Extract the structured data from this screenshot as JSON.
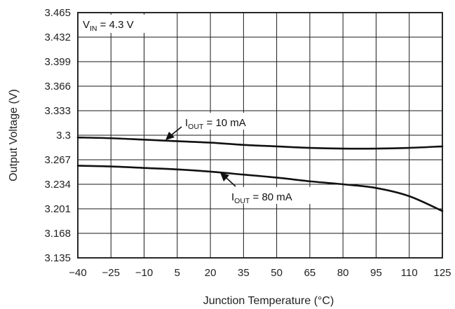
{
  "chart_data": {
    "type": "line",
    "xlabel": "Junction Temperature (°C)",
    "ylabel": "Output Voltage (V)",
    "xlim": [
      -40,
      125
    ],
    "ylim": [
      3.135,
      3.465
    ],
    "x_ticks": [
      -40,
      -25,
      -10,
      5,
      20,
      35,
      50,
      65,
      80,
      95,
      110,
      125
    ],
    "x_tick_labels": [
      "−40",
      "−25",
      "−10",
      "5",
      "20",
      "35",
      "50",
      "65",
      "80",
      "95",
      "110",
      "125"
    ],
    "y_ticks": [
      3.135,
      3.168,
      3.201,
      3.234,
      3.267,
      3.3,
      3.333,
      3.366,
      3.399,
      3.432,
      3.465
    ],
    "y_tick_labels": [
      "3.135",
      "3.168",
      "3.201",
      "3.234",
      "3.267",
      "3.3",
      "3.333",
      "3.366",
      "3.399",
      "3.432",
      "3.465"
    ],
    "grid": true,
    "annotations": [
      {
        "main": "V",
        "sub": "IN",
        "rest": " = 4.3 V"
      },
      {
        "main": "I",
        "sub": "OUT",
        "rest": " = 10 mA"
      },
      {
        "main": "I",
        "sub": "OUT",
        "rest": " = 80 mA"
      }
    ],
    "series": [
      {
        "x": [
          -40,
          -25,
          -10,
          5,
          20,
          35,
          50,
          65,
          80,
          95,
          110,
          125
        ],
        "y": [
          3.297,
          3.296,
          3.294,
          3.292,
          3.29,
          3.287,
          3.285,
          3.283,
          3.282,
          3.282,
          3.283,
          3.285
        ]
      },
      {
        "x": [
          -40,
          -25,
          -10,
          5,
          20,
          35,
          50,
          65,
          80,
          95,
          110,
          125
        ],
        "y": [
          3.259,
          3.258,
          3.256,
          3.254,
          3.251,
          3.247,
          3.243,
          3.238,
          3.234,
          3.229,
          3.218,
          3.198
        ]
      }
    ]
  }
}
